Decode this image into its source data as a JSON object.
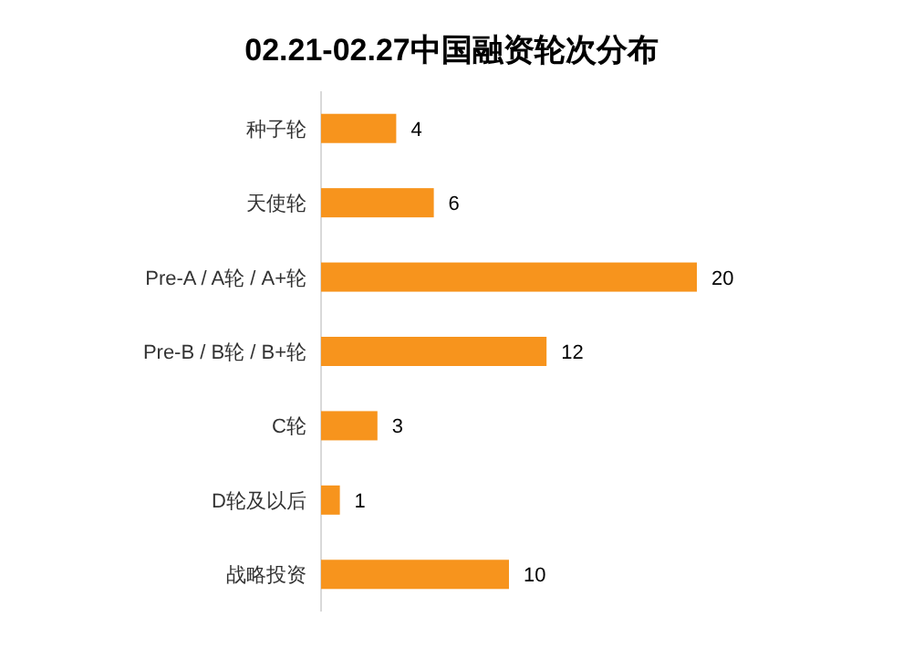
{
  "chart_data": {
    "type": "bar",
    "orientation": "horizontal",
    "title": "02.21-02.27中国融资轮次分布",
    "categories": [
      "种子轮",
      "天使轮",
      "Pre-A / A轮 / A+轮",
      "Pre-B / B轮 / B+轮",
      "C轮",
      "D轮及以后",
      "战略投资"
    ],
    "values": [
      4,
      6,
      20,
      12,
      3,
      1,
      10
    ],
    "color": "#f7941d",
    "data_labels": true
  }
}
